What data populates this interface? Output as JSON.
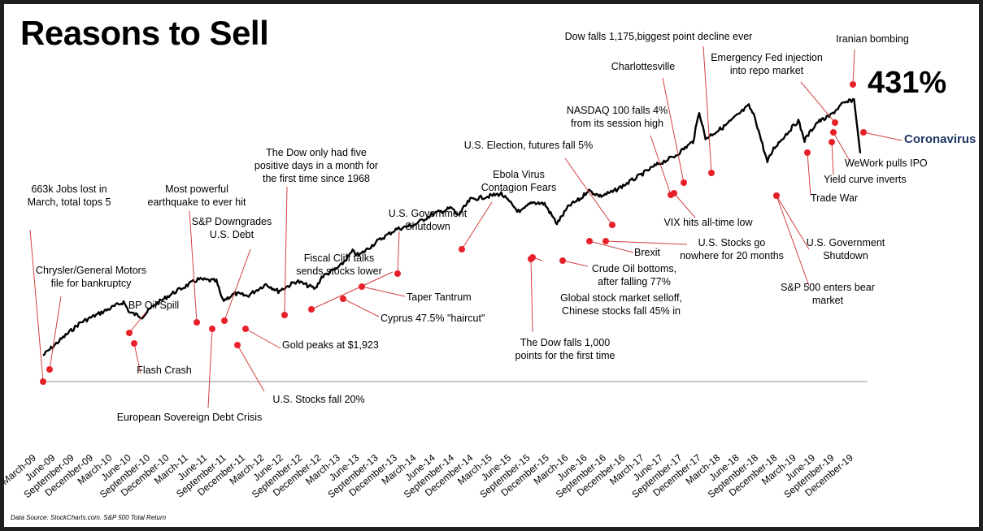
{
  "chart_data": {
    "type": "line",
    "title": "Reasons to Sell",
    "series": [
      {
        "name": "",
        "x": [
          "2009-03",
          "2009-06",
          "2009-09",
          "2009-12",
          "2010-04",
          "2010-05",
          "2010-07",
          "2010-09",
          "2010-12",
          "2011-03",
          "2011-04",
          "2011-07",
          "2011-08",
          "2011-10",
          "2011-12",
          "2012-03",
          "2012-05",
          "2012-08",
          "2012-11",
          "2012-12",
          "2013-03",
          "2013-05",
          "2013-06",
          "2013-09",
          "2013-12",
          "2014-03",
          "2014-06",
          "2014-09",
          "2014-10",
          "2014-12",
          "2015-03",
          "2015-05",
          "2015-08",
          "2015-10",
          "2015-12",
          "2016-02",
          "2016-04",
          "2016-06",
          "2016-07",
          "2016-09",
          "2016-11",
          "2017-03",
          "2017-06",
          "2017-09",
          "2017-12",
          "2018-01",
          "2018-02",
          "2018-05",
          "2018-09",
          "2018-10",
          "2018-12",
          "2019-01",
          "2019-03",
          "2019-05",
          "2019-06",
          "2019-08",
          "2019-10",
          "2019-12",
          "2020-02",
          "2020-03"
        ],
        "y": [
          0,
          28,
          55,
          70,
          90,
          72,
          65,
          85,
          105,
          122,
          128,
          125,
          92,
          104,
          100,
          120,
          108,
          125,
          112,
          132,
          150,
          175,
          168,
          192,
          212,
          220,
          238,
          248,
          235,
          262,
          268,
          272,
          240,
          258,
          255,
          222,
          252,
          265,
          278,
          268,
          275,
          300,
          320,
          335,
          360,
          410,
          365,
          385,
          420,
          400,
          325,
          348,
          372,
          395,
          362,
          392,
          402,
          422,
          431,
          340
        ]
      }
    ],
    "ylabel": "",
    "xlabel": "",
    "ylim": [
      -40,
      460
    ],
    "grid": false,
    "tick_labels": [
      "March-09",
      "June-09",
      "September-09",
      "December-09",
      "March-10",
      "June-10",
      "September-10",
      "December-10",
      "March-11",
      "June-11",
      "September-11",
      "December-11",
      "March-12",
      "June-12",
      "September-12",
      "December-12",
      "March-13",
      "June-13",
      "September-13",
      "December-13",
      "March-14",
      "June-14",
      "September-14",
      "December-14",
      "March-15",
      "June-15",
      "September-15",
      "December-15",
      "March-16",
      "June-16",
      "September-16",
      "December-16",
      "March-17",
      "June-17",
      "September-17",
      "December-17",
      "March-18",
      "June-18",
      "September-18",
      "December-18",
      "March-19",
      "June-19",
      "September-19",
      "December-19"
    ],
    "total_return_label": "431%",
    "source": "Data Source: StockCharts.com. S&P 500 Total Return",
    "events": [
      {
        "date": "2009-03",
        "text": [
          "663k Jobs lost in",
          "March, total tops 5"
        ]
      },
      {
        "date": "2009-05",
        "text": [
          "Chrysler/General Motors",
          "file for bankruptcy"
        ]
      },
      {
        "date": "2010-04",
        "text": [
          "BP Oil Spill"
        ]
      },
      {
        "date": "2010-05",
        "text": [
          "Flash Crash"
        ]
      },
      {
        "date": "2011-03",
        "text": [
          "Most powerful",
          "earthquake to ever hit"
        ]
      },
      {
        "date": "2011-06",
        "text": [
          "European Sovereign Debt Crisis"
        ]
      },
      {
        "date": "2011-08",
        "text": [
          "S&P Downgrades",
          "U.S. Debt"
        ]
      },
      {
        "date": "2011-10",
        "text": [
          "U.S. Stocks fall 20%"
        ]
      },
      {
        "date": "2011-12",
        "text": [
          "Gold peaks at $1,923"
        ]
      },
      {
        "date": "2012-11",
        "text": [
          "The Dow only had five",
          "positive days in a month for",
          "the first time since 1968"
        ]
      },
      {
        "date": "2012-12",
        "text": [
          "Fiscal Cliff talks",
          "sends stocks lower"
        ]
      },
      {
        "date": "2013-03",
        "text": [
          "Cyprus 47.5% \"haircut\""
        ]
      },
      {
        "date": "2013-06",
        "text": [
          "Taper Tantrum"
        ]
      },
      {
        "date": "2013-10",
        "text": [
          "U.S. Government",
          "Shutdown"
        ]
      },
      {
        "date": "2014-10",
        "text": [
          "Ebola Virus",
          "Contagion Fears"
        ]
      },
      {
        "date": "2015-08",
        "text": [
          "The Dow falls 1,000",
          "points for the first time"
        ]
      },
      {
        "date": "2016-01",
        "text": [
          "Global stock market selloff,",
          "Chinese stocks fall 45% in"
        ]
      },
      {
        "date": "2016-02",
        "text": [
          "Crude Oil bottoms,",
          "after falling 77%"
        ]
      },
      {
        "date": "2016-06",
        "text": [
          "Brexit"
        ]
      },
      {
        "date": "2016-06b",
        "text": [
          "U.S. Stocks go",
          "nowhere for 20 months"
        ]
      },
      {
        "date": "2016-11",
        "text": [
          "U.S. Election, futures fall 5%"
        ]
      },
      {
        "date": "2017-05",
        "text": [
          "NASDAQ 100 falls 4%",
          "from its  session high"
        ]
      },
      {
        "date": "2017-06",
        "text": [
          "VIX hits all-time low"
        ]
      },
      {
        "date": "2017-08",
        "text": [
          "Charlottesville"
        ]
      },
      {
        "date": "2018-02",
        "text": [
          "Dow falls 1,175,biggest point decline ever"
        ]
      },
      {
        "date": "2018-12",
        "text": [
          "S&P 500 enters bear",
          "market"
        ]
      },
      {
        "date": "2018-12b",
        "text": [
          "U.S. Government",
          "Shutdown"
        ]
      },
      {
        "date": "2019-05",
        "text": [
          "Trade War"
        ]
      },
      {
        "date": "2019-08",
        "text": [
          "Yield curve inverts"
        ]
      },
      {
        "date": "2019-09",
        "text": [
          "WeWork pulls IPO"
        ]
      },
      {
        "date": "2019-09b",
        "text": [
          "Emergency Fed injection",
          "into repo market"
        ]
      },
      {
        "date": "2020-01",
        "text": [
          "Iranian bombing"
        ]
      },
      {
        "date": "2020-03",
        "text": [
          "Coronavirus"
        ]
      }
    ],
    "colors": {
      "line": "#000000",
      "marker": "#e8202a",
      "leader": "#d44040",
      "baseline": "#c8c8c8",
      "coronavirus_label": "#1f3864"
    }
  }
}
